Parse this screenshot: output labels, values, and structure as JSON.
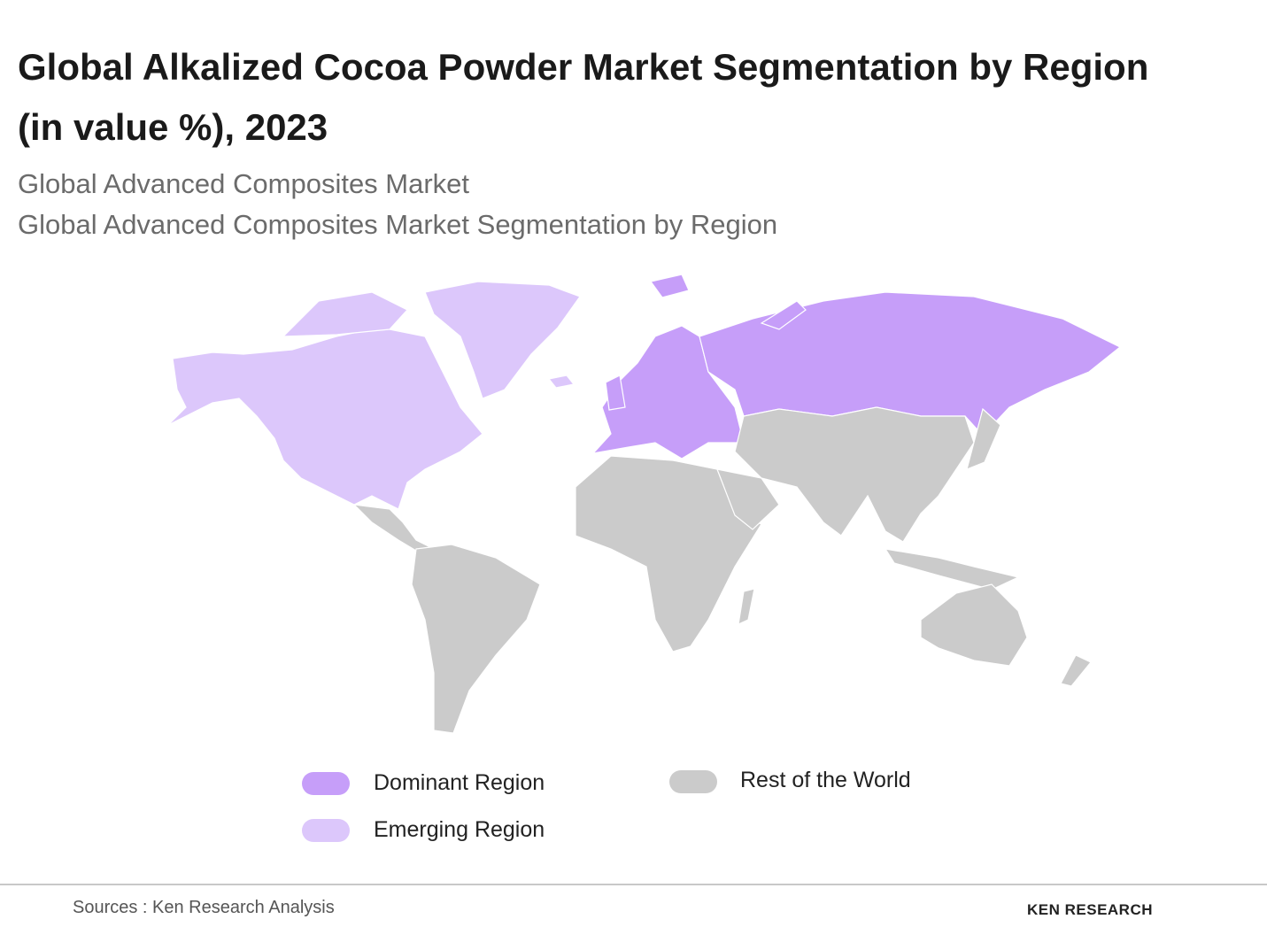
{
  "header": {
    "title": "Global Alkalized Cocoa Powder Market Segmentation by Region (in value %), 2023",
    "subtitles": [
      "Global Advanced Composites Market",
      "Global Advanced Composites Market Segmentation by Region"
    ]
  },
  "legend": [
    {
      "label": "Dominant Region",
      "color": "#c69ef9"
    },
    {
      "label": "Emerging Region",
      "color": "#dcc7fb"
    },
    {
      "label": "Rest of the World",
      "color": "#cbcbcb"
    }
  ],
  "footer": {
    "source": "Sources : Ken Research Analysis",
    "logo": "KEN RESEARCH"
  }
}
